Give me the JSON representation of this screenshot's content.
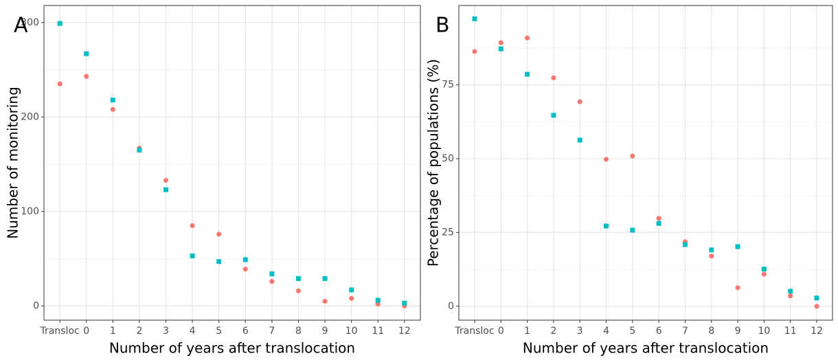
{
  "chart_data": [
    {
      "type": "scatter",
      "panel_label": "A",
      "x_label": "Number of years after translocation",
      "y_label": "Number of monitoring",
      "categories": [
        "Transloc",
        "0",
        "1",
        "2",
        "3",
        "4",
        "5",
        "6",
        "7",
        "8",
        "9",
        "10",
        "11",
        "12"
      ],
      "series": [
        {
          "color": "#F8766D",
          "marker": "circle",
          "values": [
            235,
            243,
            208,
            167,
            133,
            85,
            76,
            39,
            26,
            16,
            5,
            8,
            2,
            0
          ]
        },
        {
          "color": "#00BFC4",
          "marker": "square",
          "values": [
            299,
            267,
            218,
            165,
            123,
            53,
            47,
            49,
            34,
            29,
            29,
            17,
            6,
            3
          ]
        }
      ],
      "ylim": [
        -15,
        318
      ],
      "yticks": [
        0,
        100,
        200,
        300
      ],
      "grid": true
    },
    {
      "type": "scatter",
      "panel_label": "B",
      "x_label": "Number of years after translocation",
      "y_label": "Percentage of populations (%)",
      "categories": [
        "Transloc",
        "0",
        "1",
        "2",
        "3",
        "4",
        "5",
        "6",
        "7",
        "8",
        "9",
        "10",
        "11",
        "12"
      ],
      "series": [
        {
          "color": "#F8766D",
          "marker": "circle",
          "values": [
            86.3,
            89.3,
            90.9,
            77.4,
            69.3,
            49.8,
            50.9,
            29.8,
            21.9,
            17.0,
            6.3,
            10.9,
            3.5,
            0
          ]
        },
        {
          "color": "#00BFC4",
          "marker": "square",
          "values": [
            97.4,
            87.2,
            78.6,
            64.7,
            56.3,
            27.2,
            25.8,
            28.1,
            20.9,
            19.1,
            20.2,
            12.6,
            5.1,
            2.8
          ]
        }
      ],
      "ylim": [
        -4.7,
        101.9
      ],
      "yticks": [
        0,
        25,
        50,
        75
      ],
      "grid": true
    }
  ]
}
